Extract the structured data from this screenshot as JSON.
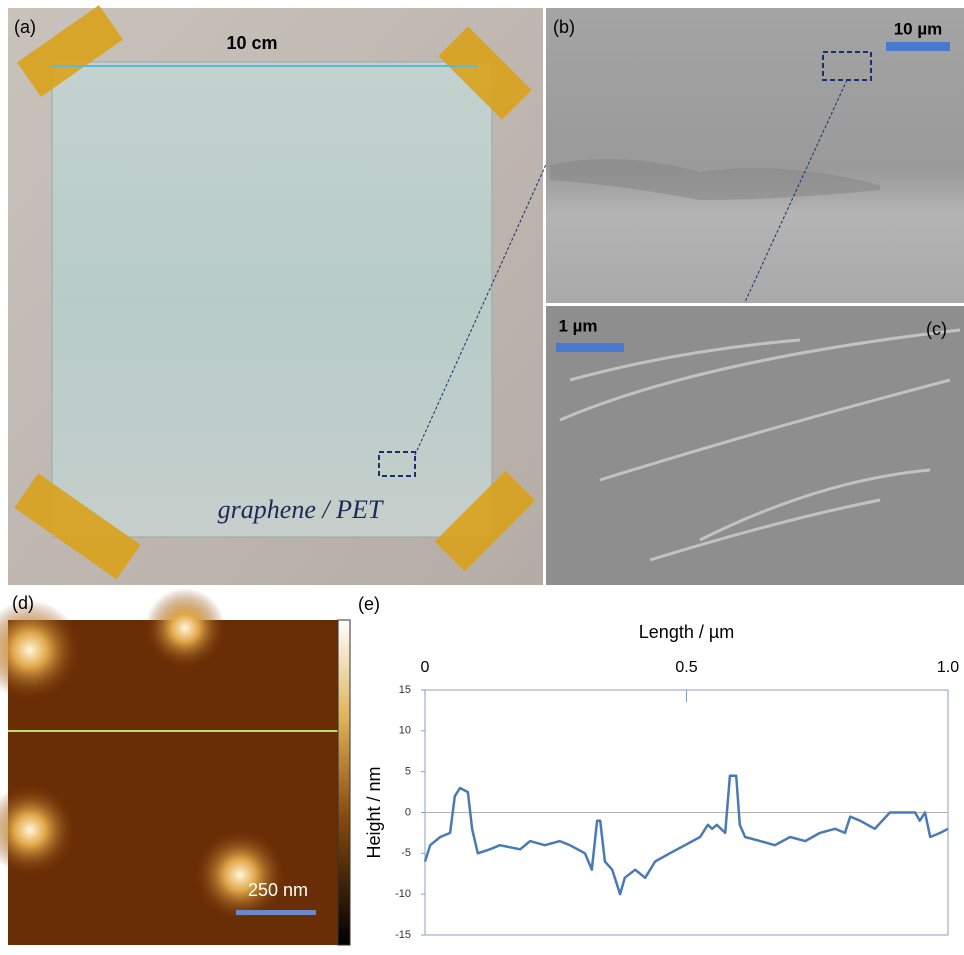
{
  "panels": {
    "a": {
      "label": "(a)",
      "scale": "10 cm",
      "writing": "graphene / PET"
    },
    "b": {
      "label": "(b)",
      "scale": "10 µm"
    },
    "c": {
      "label": "(c)",
      "scale": "1 µm"
    },
    "d": {
      "label": "(d)",
      "scale": "250 nm"
    },
    "e": {
      "label": "(e)"
    }
  },
  "chart_data": {
    "type": "line",
    "xlabel": "Length / µm",
    "ylabel": "Height / nm",
    "color": "#4a7ab5",
    "x": [
      0,
      0.01,
      0.029,
      0.048,
      0.057,
      0.067,
      0.082,
      0.09,
      0.101,
      0.124,
      0.143,
      0.182,
      0.201,
      0.229,
      0.258,
      0.277,
      0.306,
      0.319,
      0.329,
      0.335,
      0.344,
      0.358,
      0.373,
      0.382,
      0.402,
      0.421,
      0.44,
      0.468,
      0.497,
      0.526,
      0.541,
      0.549,
      0.558,
      0.574,
      0.583,
      0.595,
      0.602,
      0.612,
      0.641,
      0.669,
      0.698,
      0.727,
      0.755,
      0.784,
      0.803,
      0.813,
      0.832,
      0.86,
      0.889,
      0.918,
      0.937,
      0.946,
      0.956,
      0.966,
      0.985,
      1
    ],
    "values": [
      -6,
      -4,
      -3,
      -2.5,
      2,
      3,
      2.5,
      -2,
      -5,
      -4.5,
      -4,
      -4.5,
      -3.5,
      -4,
      -3.5,
      -4,
      -5,
      -7,
      -1,
      -1,
      -6,
      -7,
      -10,
      -8,
      -7,
      -8,
      -6,
      -5,
      -4,
      -3,
      -1.5,
      -2,
      -1.5,
      -2.5,
      4.5,
      4.5,
      -1.5,
      -3,
      -3.5,
      -4,
      -3,
      -3.5,
      -2.5,
      -2,
      -2.5,
      -0.5,
      -1,
      -2,
      0,
      0,
      0,
      -1,
      0,
      -3,
      -2.5,
      -2
    ],
    "xlim": [
      0,
      1
    ],
    "ylim": [
      -15,
      15
    ],
    "xticks": [
      0,
      0.5,
      {
        "value": 1,
        "label": "1.0"
      }
    ],
    "yticks": [
      -15,
      -10,
      -5,
      0,
      5,
      10,
      15
    ]
  }
}
